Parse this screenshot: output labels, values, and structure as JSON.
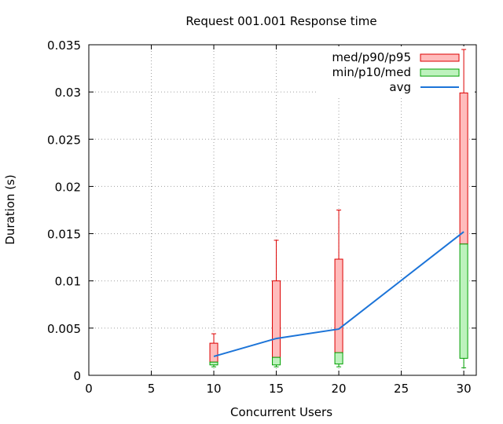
{
  "chart_data": {
    "type": "box",
    "title": "Request 001.001 Response time",
    "xlabel": "Concurrent Users",
    "ylabel": "Duration (s)",
    "xlim": [
      0,
      31
    ],
    "ylim": [
      0,
      0.035
    ],
    "xticks": [
      0,
      5,
      10,
      15,
      20,
      25,
      30
    ],
    "yticks": [
      0,
      0.005,
      0.01,
      0.015,
      0.02,
      0.025,
      0.03,
      0.035
    ],
    "grid": true,
    "legend_position": "top-right",
    "legend": [
      {
        "label": "med/p90/p95",
        "kind": "box",
        "fill": "#ffbcbc",
        "stroke": "#dd0000"
      },
      {
        "label": "min/p10/med",
        "kind": "box",
        "fill": "#bdf2bd",
        "stroke": "#00a000"
      },
      {
        "label": "avg",
        "kind": "line",
        "stroke": "#1c74d8"
      }
    ],
    "boxes": [
      {
        "x": 10,
        "min": 0.0009,
        "p10": 0.0011,
        "med": 0.0014,
        "p90": 0.0034,
        "p95": 0.0044
      },
      {
        "x": 15,
        "min": 0.0009,
        "p10": 0.0011,
        "med": 0.0019,
        "p90": 0.01,
        "p95": 0.0143
      },
      {
        "x": 20,
        "min": 0.0009,
        "p10": 0.0012,
        "med": 0.0024,
        "p90": 0.0123,
        "p95": 0.0175
      },
      {
        "x": 30,
        "min": 0.0008,
        "p10": 0.0018,
        "med": 0.0139,
        "p90": 0.0299,
        "p95": 0.0345
      }
    ],
    "avg": {
      "x": [
        10,
        15,
        20,
        30
      ],
      "y": [
        0.002,
        0.0039,
        0.0049,
        0.0152
      ]
    },
    "colors": {
      "upper_box_fill": "#ffbcbc",
      "upper_box_stroke": "#dd0000",
      "lower_box_fill": "#bdf2bd",
      "lower_box_stroke": "#00a000",
      "avg_line": "#1c74d8"
    }
  }
}
